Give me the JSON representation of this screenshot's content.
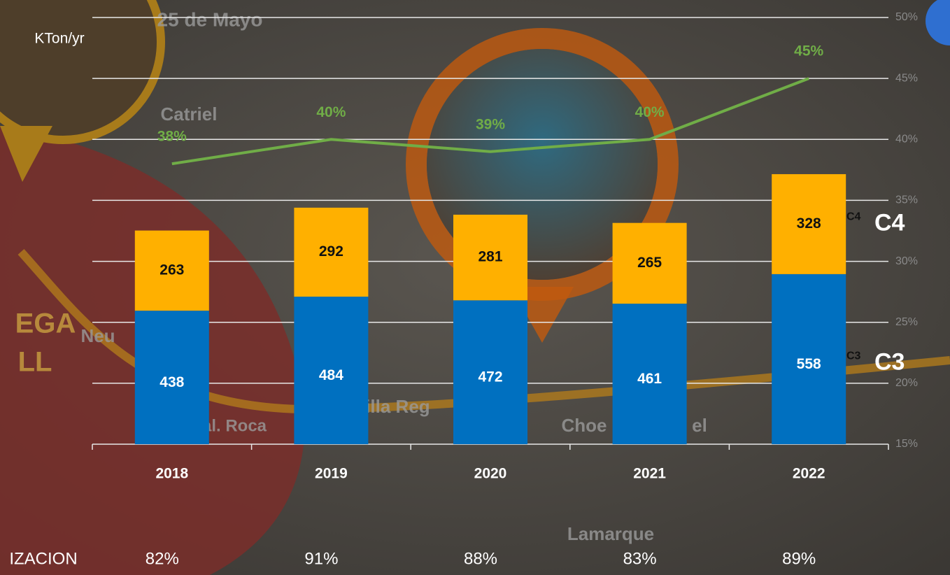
{
  "chart_data": {
    "type": "bar",
    "stacked": true,
    "y_axis_label": "KTon/yr",
    "categories": [
      "2018",
      "2019",
      "2020",
      "2021",
      "2022"
    ],
    "ylim": [
      0,
      1400
    ],
    "y2lim": [
      15,
      50
    ],
    "y2ticks": [
      {
        "value": 15,
        "label": "15%"
      },
      {
        "value": 20,
        "label": "20%"
      },
      {
        "value": 25,
        "label": "25%"
      },
      {
        "value": 30,
        "label": "30%"
      },
      {
        "value": 35,
        "label": "35%"
      },
      {
        "value": 40,
        "label": "40%"
      },
      {
        "value": 45,
        "label": "45%"
      },
      {
        "value": 50,
        "label": "50%"
      }
    ],
    "grid": true,
    "series": [
      {
        "name": "C3",
        "color": "#0070c0",
        "values": [
          438,
          484,
          472,
          461,
          558
        ]
      },
      {
        "name": "C4",
        "color": "#ffb000",
        "values": [
          263,
          292,
          281,
          265,
          328
        ]
      },
      {
        "type": "line",
        "axis": "y2",
        "color": "#70ad47",
        "values": [
          38,
          40,
          39,
          40,
          45
        ],
        "value_labels": [
          "38%",
          "40%",
          "39%",
          "40%",
          "45%"
        ]
      }
    ]
  },
  "utilization_row": {
    "label": "IZACION",
    "values": [
      "82%",
      "91%",
      "88%",
      "83%",
      "89%"
    ]
  },
  "background_map": {
    "labels": [
      "25 de Mayo",
      "Catriel",
      "EGA",
      "LL",
      "Neu",
      "al. Roca",
      "Villa Reg",
      "Choe",
      "el",
      "Lamarque"
    ]
  }
}
